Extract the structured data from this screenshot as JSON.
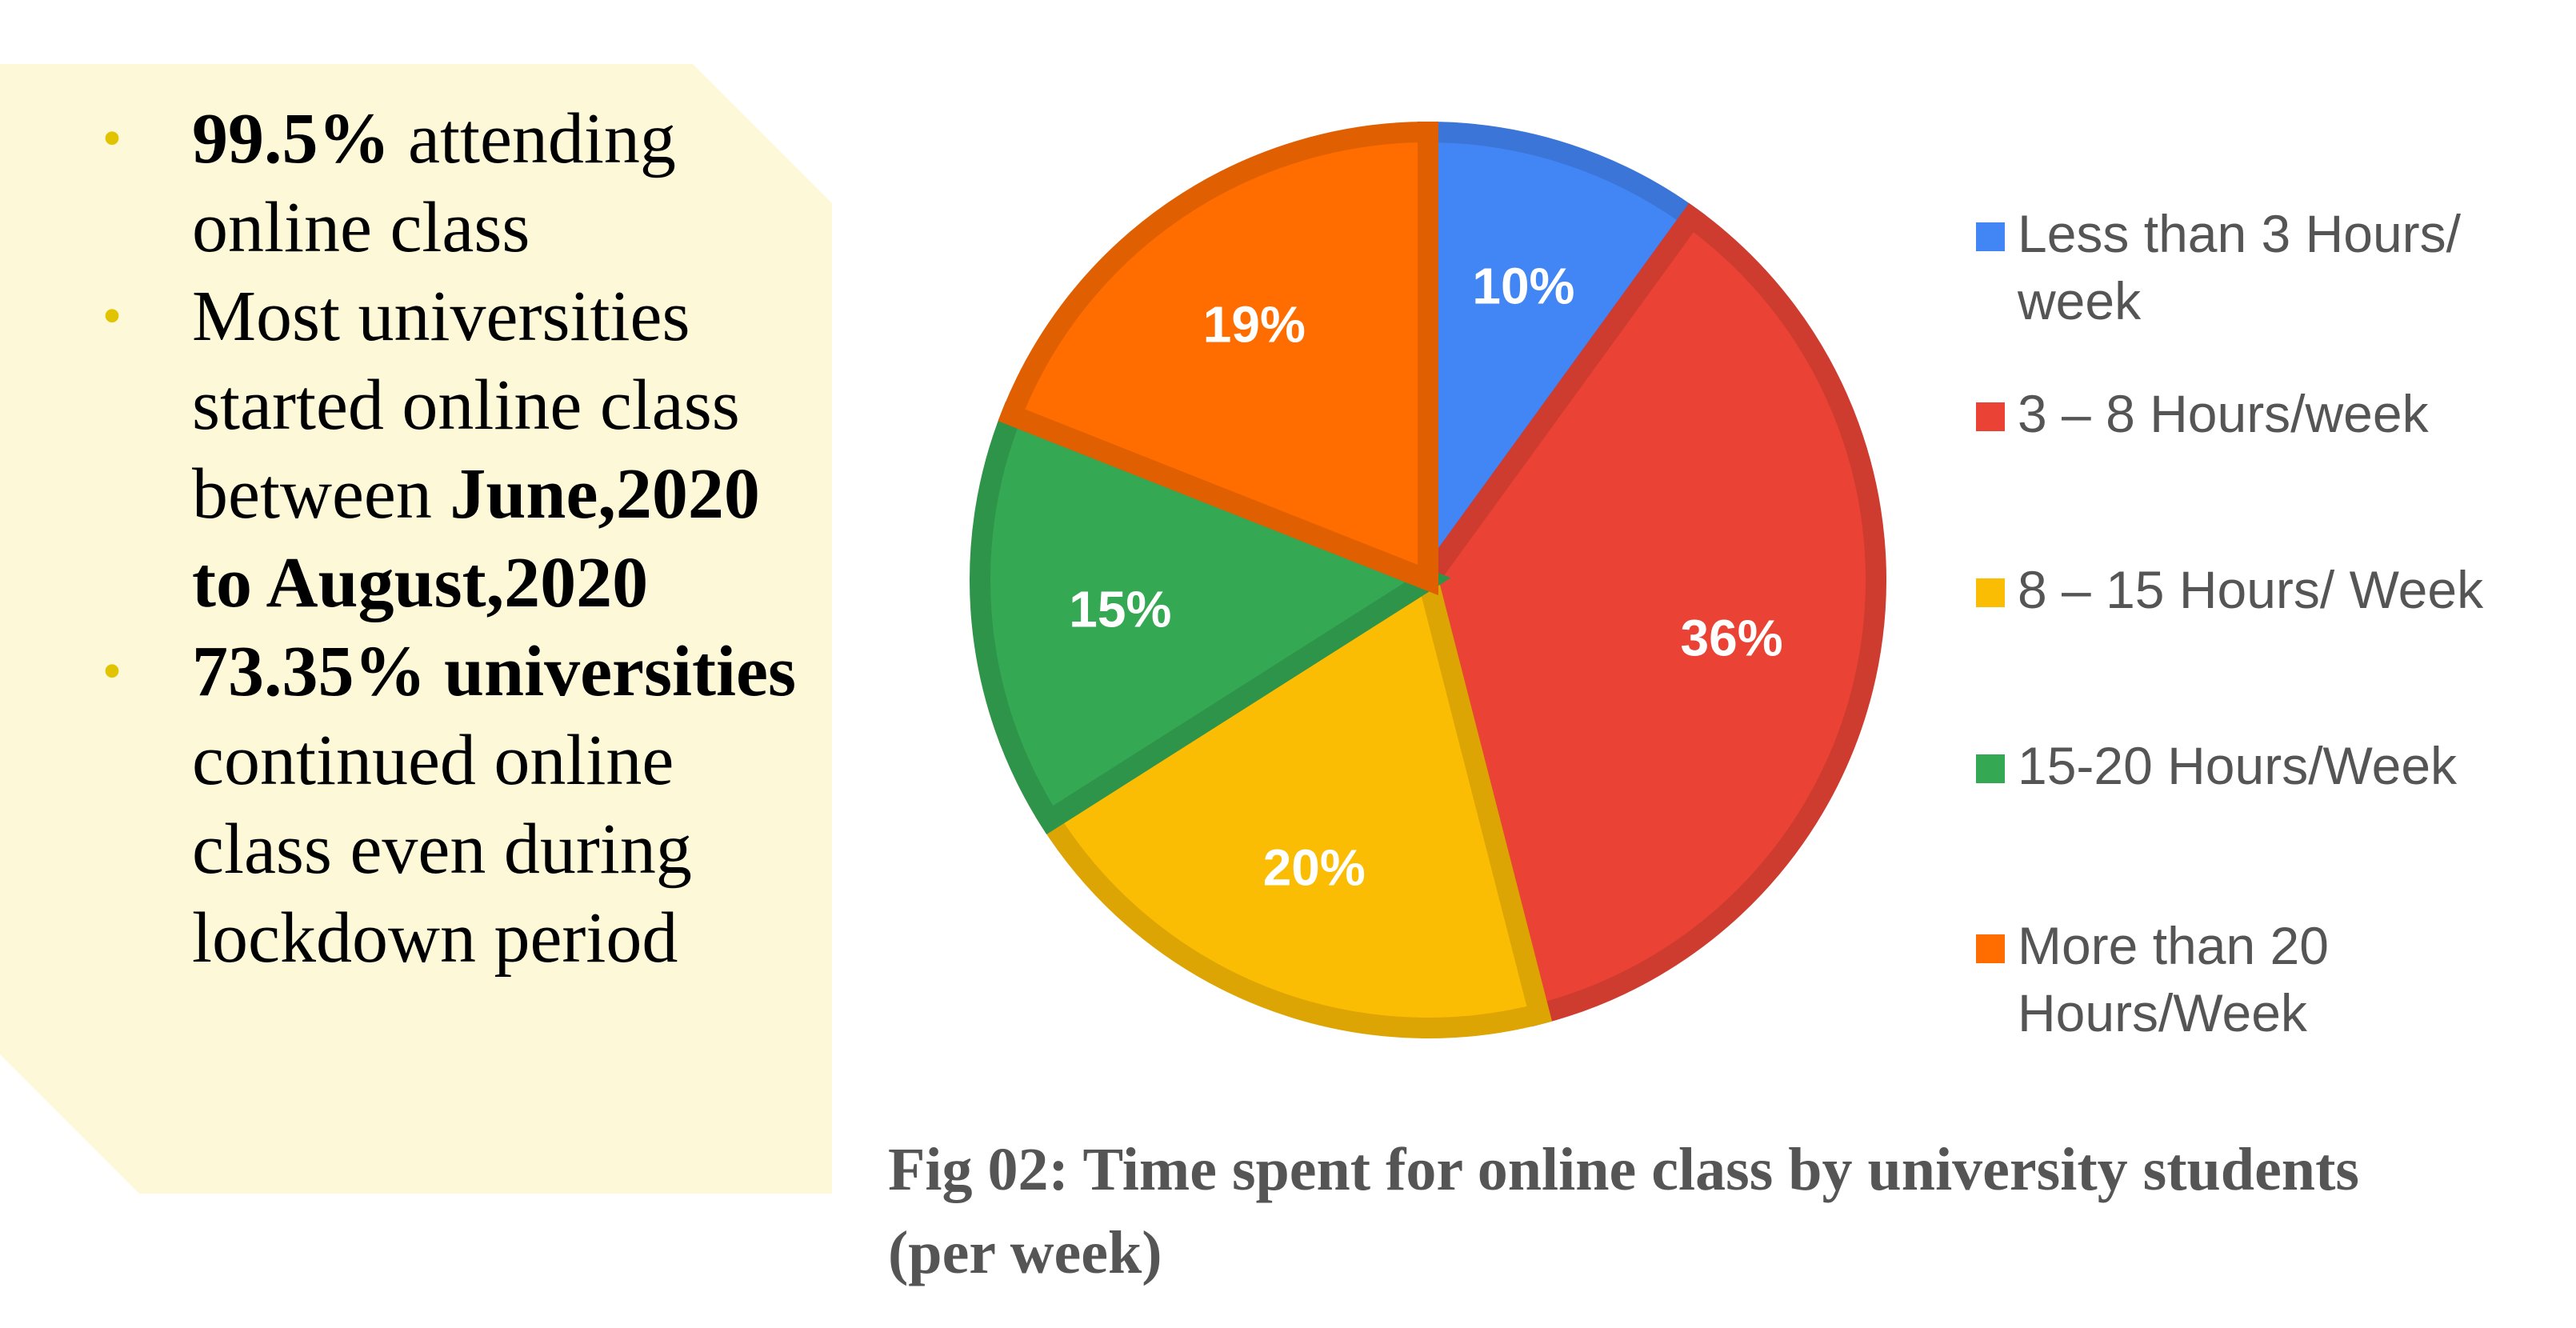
{
  "panel": {
    "bullets": [
      {
        "strong": "99.5%",
        "text": " attending online class"
      },
      {
        "strong": "",
        "text": "Most universities started online class between ",
        "strong_after": "June,2020 to August,2020"
      },
      {
        "strong": "73.35% universities",
        "text": " continued online class even during lockdown period"
      }
    ],
    "colors": {
      "background": "#fdf8d8",
      "bullet": "#e2c300"
    }
  },
  "chart_data": {
    "type": "pie",
    "categories": [
      "Less than 3 Hours/ week",
      "3 – 8 Hours/week",
      "8 – 15 Hours/ Week",
      "15-20 Hours/Week",
      "More than 20 Hours/Week"
    ],
    "values": [
      10,
      36,
      20,
      15,
      19
    ],
    "data_labels": [
      "10%",
      "36%",
      "20%",
      "15%",
      "19%"
    ],
    "colors": [
      "#4285f4",
      "#ea4335",
      "#fbbc04",
      "#34a853",
      "#ff6d01"
    ],
    "legend_position": "right"
  },
  "legend": {
    "items": [
      {
        "line1": "Less than 3 Hours/",
        "line2": "week",
        "color": "#4285f4"
      },
      {
        "line1": "3 – 8 Hours/week",
        "line2": "",
        "color": "#ea4335"
      },
      {
        "line1": "8 – 15 Hours/ Week",
        "line2": "",
        "color": "#fbbc04"
      },
      {
        "line1": "15-20 Hours/Week",
        "line2": "",
        "color": "#34a853"
      },
      {
        "line1": "More than 20",
        "line2": "Hours/Week",
        "color": "#ff6d01"
      }
    ]
  },
  "caption": {
    "line1": "Fig 02: Time spent for online class by university students",
    "line2": "(per week)"
  }
}
